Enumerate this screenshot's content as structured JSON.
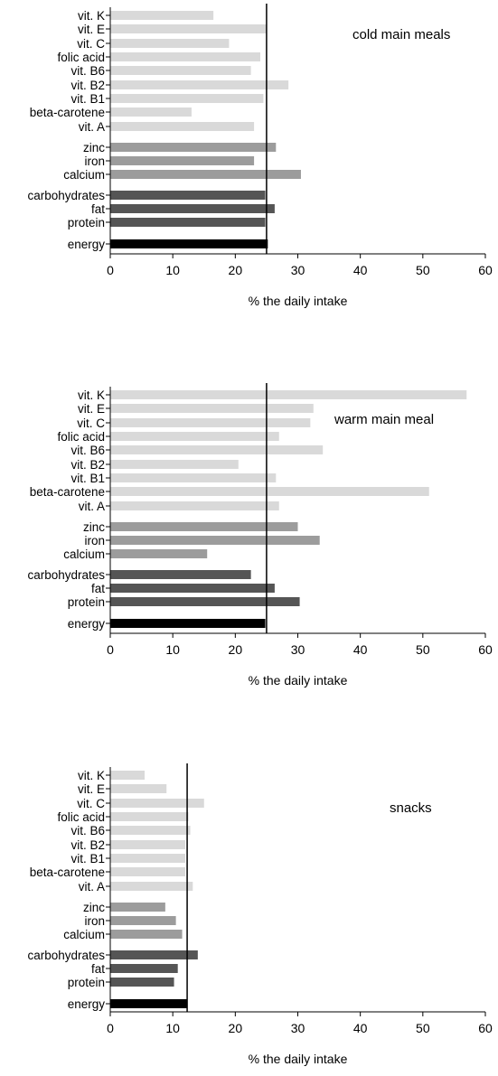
{
  "chart_data": [
    {
      "type": "bar",
      "orientation": "horizontal",
      "title": "cold main meals",
      "xlabel": "% the daily intake",
      "xlim": [
        0,
        60
      ],
      "xticks": [
        0,
        10,
        20,
        30,
        40,
        50,
        60
      ],
      "reference_line": 25,
      "categories": [
        "vit. K",
        "vit. E",
        "vit. C",
        "folic acid",
        "vit. B6",
        "vit. B2",
        "vit. B1",
        "beta-carotene",
        "vit. A",
        "zinc",
        "iron",
        "calcium",
        "carbohydrates",
        "fat",
        "protein",
        "energy"
      ],
      "groups": [
        "vitamin",
        "vitamin",
        "vitamin",
        "vitamin",
        "vitamin",
        "vitamin",
        "vitamin",
        "vitamin",
        "vitamin",
        "mineral",
        "mineral",
        "mineral",
        "macro",
        "macro",
        "macro",
        "energy"
      ],
      "values": [
        16.5,
        25,
        19,
        24,
        22.5,
        28.5,
        24.5,
        13,
        23,
        26.5,
        23,
        30.5,
        24.8,
        26.3,
        24.8,
        25.2
      ]
    },
    {
      "type": "bar",
      "orientation": "horizontal",
      "title": "warm main meal",
      "xlabel": "% the daily intake",
      "xlim": [
        0,
        60
      ],
      "xticks": [
        0,
        10,
        20,
        30,
        40,
        50,
        60
      ],
      "reference_line": 25,
      "categories": [
        "vit. K",
        "vit. E",
        "vit. C",
        "folic acid",
        "vit. B6",
        "vit. B2",
        "vit. B1",
        "beta-carotene",
        "vit. A",
        "zinc",
        "iron",
        "calcium",
        "carbohydrates",
        "fat",
        "protein",
        "energy"
      ],
      "groups": [
        "vitamin",
        "vitamin",
        "vitamin",
        "vitamin",
        "vitamin",
        "vitamin",
        "vitamin",
        "vitamin",
        "vitamin",
        "mineral",
        "mineral",
        "mineral",
        "macro",
        "macro",
        "macro",
        "energy"
      ],
      "values": [
        57,
        32.5,
        32,
        27,
        34,
        20.5,
        26.5,
        51,
        27,
        30,
        33.5,
        15.5,
        22.5,
        26.3,
        30.3,
        24.8
      ]
    },
    {
      "type": "bar",
      "orientation": "horizontal",
      "title": "snacks",
      "xlabel": "% the daily intake",
      "xlim": [
        0,
        60
      ],
      "xticks": [
        0,
        10,
        20,
        30,
        40,
        50,
        60
      ],
      "reference_line": 12.3,
      "categories": [
        "vit. K",
        "vit. E",
        "vit. C",
        "folic acid",
        "vit. B6",
        "vit. B2",
        "vit. B1",
        "beta-carotene",
        "vit. A",
        "zinc",
        "iron",
        "calcium",
        "carbohydrates",
        "fat",
        "protein",
        "energy"
      ],
      "groups": [
        "vitamin",
        "vitamin",
        "vitamin",
        "vitamin",
        "vitamin",
        "vitamin",
        "vitamin",
        "vitamin",
        "vitamin",
        "mineral",
        "mineral",
        "mineral",
        "macro",
        "macro",
        "macro",
        "energy"
      ],
      "values": [
        5.5,
        9,
        15,
        12.5,
        12.8,
        12,
        12,
        12,
        13.2,
        8.8,
        10.5,
        11.5,
        14,
        10.8,
        10.2,
        12.3
      ]
    }
  ],
  "colors": {
    "vitamin": "#d9d9d9",
    "mineral": "#9c9c9c",
    "macro": "#555555",
    "energy": "#000000",
    "reference_line": "#000000"
  }
}
